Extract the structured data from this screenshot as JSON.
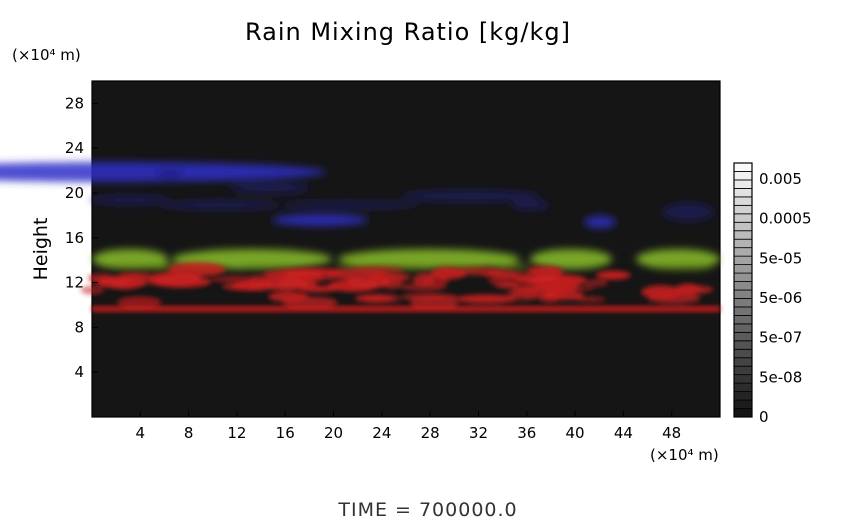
{
  "chart_data": {
    "type": "heatmap",
    "title": "Rain Mixing Ratio [kg/kg]",
    "ylabel": "Height",
    "y_unit": "(×10⁴ m)",
    "x_unit": "(×10⁴ m)",
    "xlim": [
      0,
      52
    ],
    "ylim": [
      0,
      30
    ],
    "x_ticks": [
      "4",
      "8",
      "12",
      "16",
      "20",
      "24",
      "28",
      "32",
      "36",
      "40",
      "44",
      "48"
    ],
    "y_ticks": [
      "4",
      "8",
      "12",
      "16",
      "20",
      "24",
      "28"
    ],
    "colorbar": {
      "labels": [
        "0.005",
        "0.0005",
        "5e-05",
        "5e-06",
        "5e-07",
        "5e-08",
        "0"
      ],
      "scale": "log"
    },
    "layers": [
      {
        "color": "#2a2aa8",
        "y_range": [
          17,
          20
        ]
      },
      {
        "color": "#8ac028",
        "y_range": [
          13.2,
          15
        ]
      },
      {
        "color": "#c82020",
        "y_range": [
          9.4,
          13.2
        ]
      }
    ],
    "background": "#151515",
    "footer": "TIME = 700000.0"
  }
}
